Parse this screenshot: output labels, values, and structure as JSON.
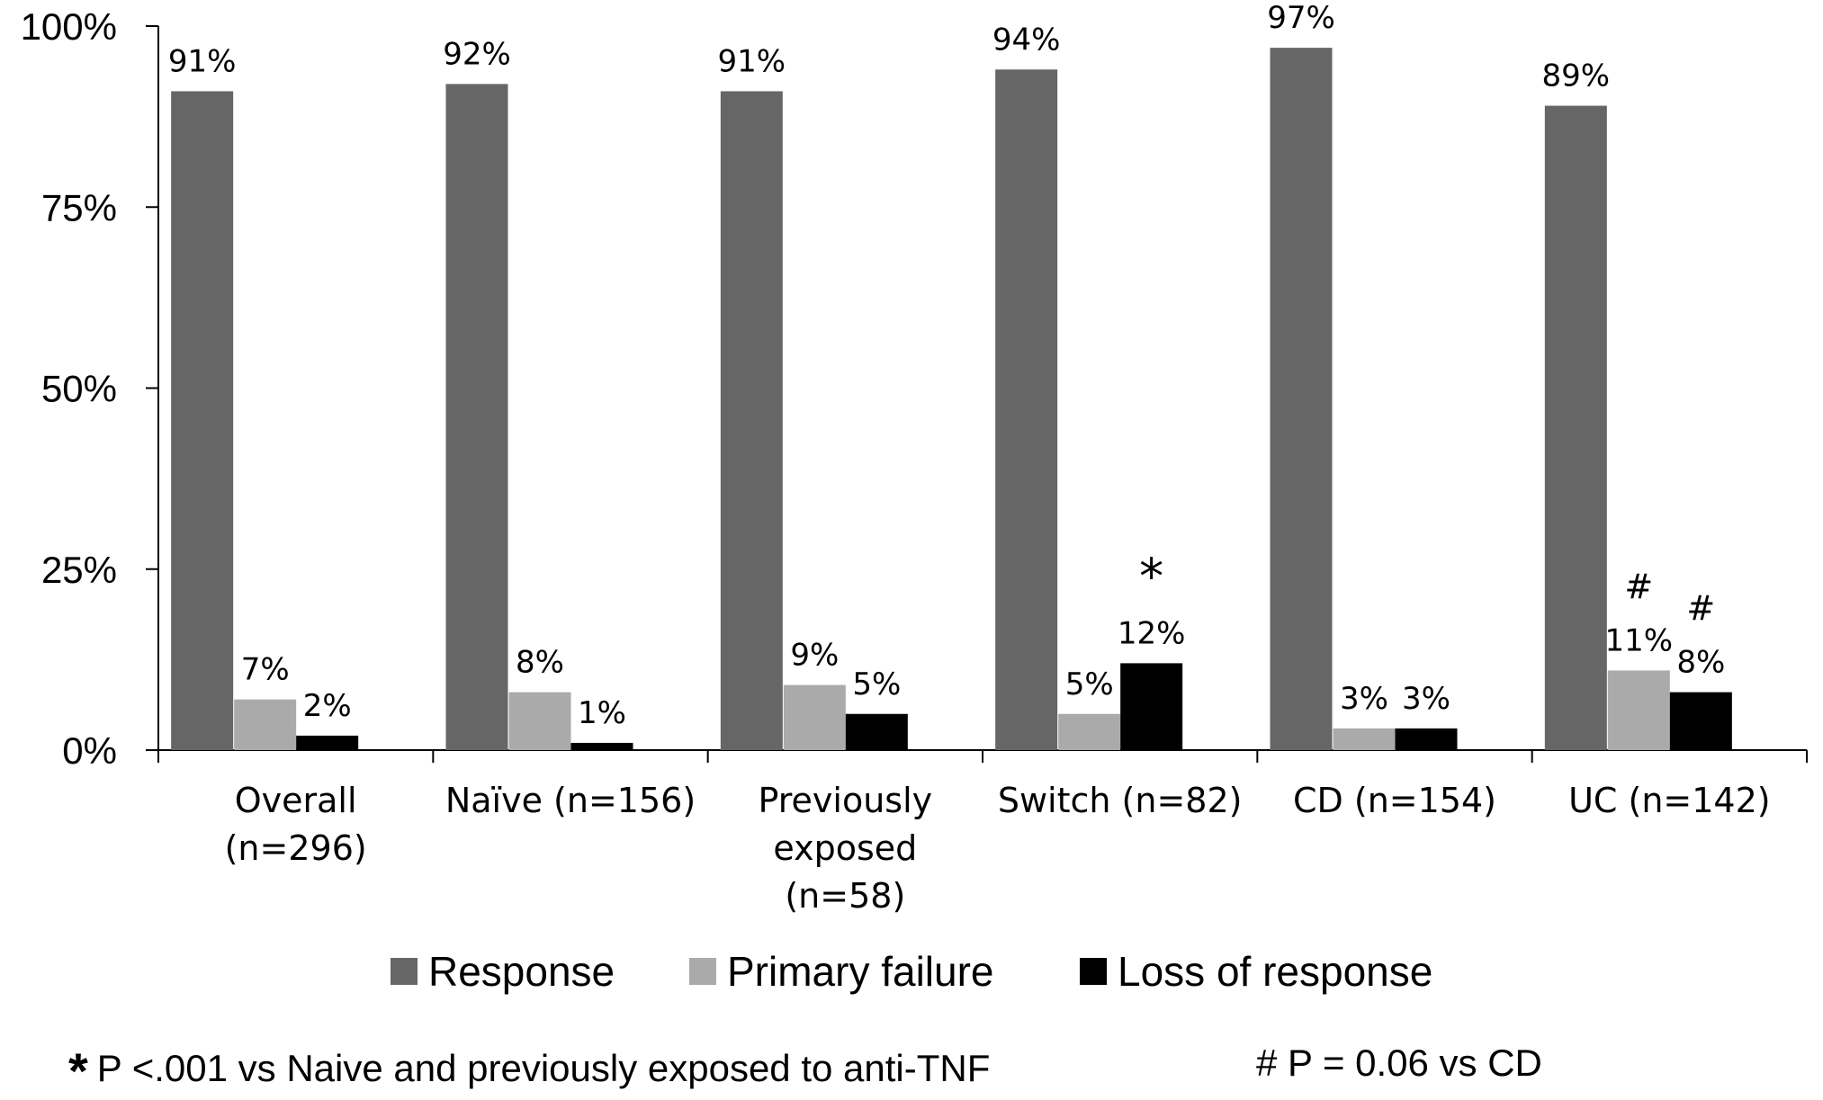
{
  "chart_data": {
    "type": "bar",
    "categories": [
      [
        "Overall",
        "(n=296)"
      ],
      [
        "Naïve (n=156)"
      ],
      [
        "Previously",
        "exposed",
        "(n=58)"
      ],
      [
        "Switch (n=82)"
      ],
      [
        "CD (n=154)"
      ],
      [
        "UC (n=142)"
      ]
    ],
    "series": [
      {
        "name": "Response",
        "color": "#666666",
        "values": [
          91,
          92,
          91,
          94,
          97,
          89
        ],
        "labels": [
          "91%",
          "92%",
          "91%",
          "94%",
          "97%",
          "89%"
        ]
      },
      {
        "name": "Primary failure",
        "color": "#aaaaaa",
        "values": [
          7,
          8,
          9,
          5,
          3,
          11
        ],
        "labels": [
          "7%",
          "8%",
          "9%",
          "5%",
          "3%",
          "11%"
        ]
      },
      {
        "name": "Loss of response",
        "color": "#000000",
        "values": [
          2,
          1,
          5,
          12,
          3,
          8
        ],
        "labels": [
          "2%",
          "1%",
          "5%",
          "12%",
          "3%",
          "8%"
        ]
      }
    ],
    "yticks": [
      "0%",
      "25%",
      "50%",
      "75%",
      "100%"
    ],
    "ylim": [
      0,
      100
    ],
    "grid": false,
    "legend_position": "bottom",
    "annotations": [
      {
        "text": "*",
        "category": 3,
        "series": 2
      },
      {
        "text": "#",
        "category": 5,
        "series": 1
      },
      {
        "text": "#",
        "category": 5,
        "series": 2
      }
    ]
  },
  "footnotes": {
    "star_symbol": "*",
    "star_text": "P <.001 vs Naive and previously exposed to anti-TNF",
    "hash_text": "# P = 0.06 vs CD"
  }
}
